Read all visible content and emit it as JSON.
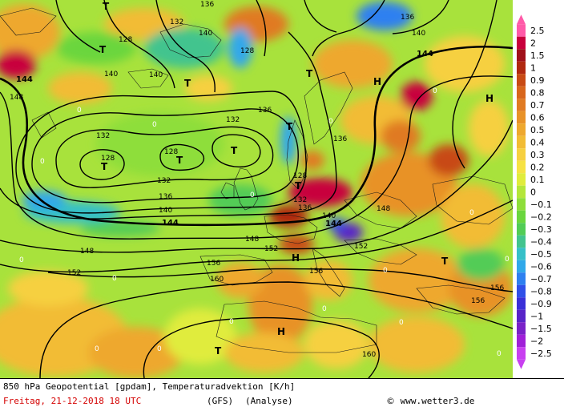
{
  "map": {
    "isoline_labels": [
      "128",
      "132",
      "136",
      "140",
      "144",
      "148",
      "152",
      "156",
      "160"
    ],
    "pressure_centers": [
      "T",
      "H"
    ],
    "zero_label": "0"
  },
  "legend": {
    "values": [
      "2.5",
      "2",
      "1.5",
      "1",
      "0.9",
      "0.8",
      "0.7",
      "0.6",
      "0.5",
      "0.4",
      "0.3",
      "0.2",
      "0.1",
      "0",
      "−0.1",
      "−0.2",
      "−0.3",
      "−0.4",
      "−0.5",
      "−0.6",
      "−0.7",
      "−0.8",
      "−0.9",
      "−1",
      "−1.5",
      "−2",
      "−2.5"
    ],
    "colors": [
      "#ff5aa8",
      "#c8003c",
      "#a0101a",
      "#b02810",
      "#c84a14",
      "#d8661c",
      "#e07a22",
      "#e89228",
      "#eea82e",
      "#f2bc34",
      "#f6d040",
      "#f6e244",
      "#e0ec3c",
      "#b4e63a",
      "#8ede3a",
      "#6ad63e",
      "#52cc56",
      "#42c48e",
      "#36c0c8",
      "#30a8ea",
      "#2e80f0",
      "#3050e8",
      "#3a30d8",
      "#5824c8",
      "#7a22c8",
      "#a020d8",
      "#c840f0"
    ]
  },
  "footer": {
    "title": "850 hPa Geopotential [gpdam], Temperaturadvektion [K/h]",
    "date": "Freitag, 21-12-2018  18 UTC",
    "model": "(GFS)",
    "run": "(Analyse)",
    "copyright": "www.wetter3.de",
    "copyright_symbol": "©"
  }
}
